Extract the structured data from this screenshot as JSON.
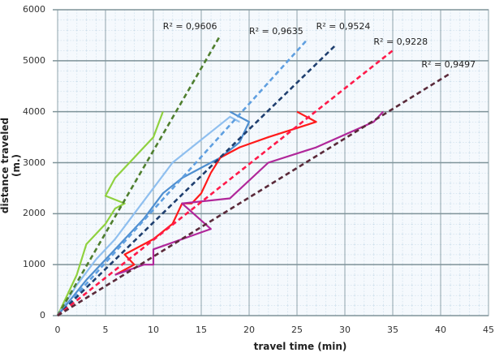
{
  "chart_data": {
    "type": "line",
    "title": "",
    "xlabel": "travel time (min)",
    "ylabel": "distance traveled (m.)",
    "xlim": [
      0,
      45
    ],
    "ylim": [
      0,
      6000
    ],
    "x_ticks": [
      "0",
      "5",
      "10",
      "15",
      "20",
      "25",
      "30",
      "35",
      "40",
      "45"
    ],
    "y_ticks": [
      "0",
      "1000",
      "2000",
      "3000",
      "4000",
      "5000",
      "6000"
    ],
    "grid": true,
    "legend": "none",
    "series": [
      {
        "name": "green observed",
        "color": "#8fd13f",
        "style": "solid",
        "points": [
          [
            0,
            0
          ],
          [
            2,
            800
          ],
          [
            3,
            1400
          ],
          [
            5,
            1800
          ],
          [
            6,
            2100
          ],
          [
            7,
            2200
          ],
          [
            5,
            2350
          ],
          [
            6,
            2700
          ],
          [
            8,
            3100
          ],
          [
            9,
            3300
          ],
          [
            10,
            3500
          ],
          [
            11,
            4000
          ]
        ]
      },
      {
        "name": "light blue observed",
        "color": "#8fbfef",
        "style": "solid",
        "points": [
          [
            0,
            0
          ],
          [
            2,
            600
          ],
          [
            4,
            1100
          ],
          [
            6,
            1500
          ],
          [
            8,
            2000
          ],
          [
            10,
            2500
          ],
          [
            12,
            3000
          ],
          [
            14,
            3300
          ],
          [
            16,
            3600
          ],
          [
            18,
            3900
          ],
          [
            19,
            3800
          ]
        ]
      },
      {
        "name": "steel blue observed",
        "color": "#4f8fd0",
        "style": "solid",
        "points": [
          [
            0,
            0
          ],
          [
            3,
            700
          ],
          [
            5,
            1100
          ],
          [
            7,
            1500
          ],
          [
            9,
            1900
          ],
          [
            11,
            2400
          ],
          [
            13,
            2700
          ],
          [
            15,
            2900
          ],
          [
            17,
            3100
          ],
          [
            19,
            3400
          ],
          [
            20,
            3800
          ],
          [
            18,
            4000
          ]
        ]
      },
      {
        "name": "red observed",
        "color": "#ff1a1a",
        "style": "solid",
        "points": [
          [
            6,
            800
          ],
          [
            8,
            1000
          ],
          [
            7,
            1200
          ],
          [
            10,
            1500
          ],
          [
            12,
            1800
          ],
          [
            13,
            2200
          ],
          [
            14,
            2200
          ],
          [
            15,
            2400
          ],
          [
            16,
            2800
          ],
          [
            17,
            3100
          ],
          [
            19,
            3300
          ],
          [
            22,
            3500
          ],
          [
            27,
            3800
          ],
          [
            25,
            4000
          ]
        ]
      },
      {
        "name": "magenta observed",
        "color": "#b0279a",
        "style": "solid",
        "points": [
          [
            6,
            800
          ],
          [
            9,
            1000
          ],
          [
            10,
            1000
          ],
          [
            10,
            1300
          ],
          [
            16,
            1700
          ],
          [
            13,
            2200
          ],
          [
            18,
            2300
          ],
          [
            22,
            3000
          ],
          [
            27,
            3300
          ],
          [
            33,
            3800
          ],
          [
            34,
            4000
          ]
        ]
      },
      {
        "name": "green trend",
        "color": "#4f7f2f",
        "style": "dashed",
        "r2": "0,9606",
        "points": [
          [
            0,
            0
          ],
          [
            17,
            5500
          ]
        ]
      },
      {
        "name": "light blue trend",
        "color": "#5f9fe0",
        "style": "dashed",
        "r2": "0,9635",
        "points": [
          [
            0,
            0
          ],
          [
            26,
            5400
          ]
        ]
      },
      {
        "name": "navy trend",
        "color": "#1f3f6f",
        "style": "dashed",
        "r2": "0,9524",
        "points": [
          [
            0,
            0
          ],
          [
            29,
            5300
          ]
        ]
      },
      {
        "name": "red trend",
        "color": "#ff1a4a",
        "style": "dashed",
        "r2": "0,9228",
        "points": [
          [
            0,
            0
          ],
          [
            35,
            5200
          ]
        ]
      },
      {
        "name": "maroon trend",
        "color": "#5a2a3a",
        "style": "dashed",
        "r2": "0,9497",
        "points": [
          [
            0,
            0
          ],
          [
            41,
            4750
          ]
        ]
      }
    ],
    "annotations": [
      {
        "text": "R² = 0,9606",
        "x": 11,
        "y": 5650
      },
      {
        "text": "R² = 0,9635",
        "x": 20,
        "y": 5550
      },
      {
        "text": "R² = 0,9524",
        "x": 27,
        "y": 5650
      },
      {
        "text": "R² = 0,9228",
        "x": 33,
        "y": 5350
      },
      {
        "text": "R² = 0,9497",
        "x": 38,
        "y": 4900
      }
    ]
  }
}
